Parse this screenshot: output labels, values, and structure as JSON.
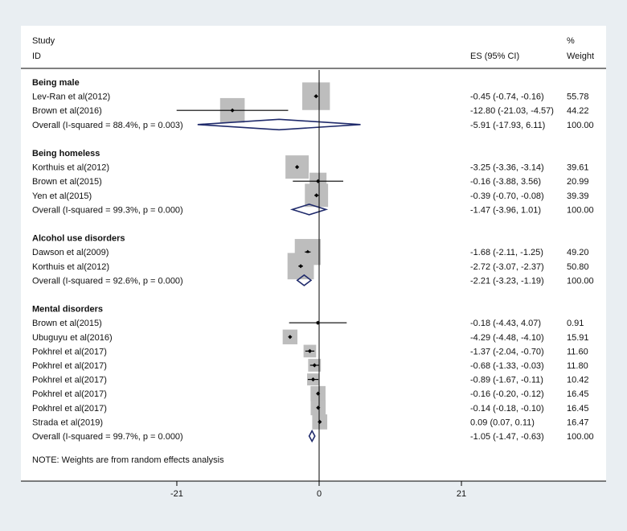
{
  "chart_data": {
    "type": "forest",
    "header": {
      "study": "Study",
      "id": "ID",
      "es": "ES (95% CI)",
      "weight_pct": "%",
      "weight": "Weight"
    },
    "groups": [
      {
        "name": "Being male",
        "studies": [
          {
            "label": "Lev-Ran et al(2012)",
            "es": -0.45,
            "lo": -0.74,
            "hi": -0.16,
            "weight": 55.78,
            "es_text": "-0.45 (-0.74, -0.16)",
            "weight_text": "55.78"
          },
          {
            "label": "Brown et al(2016)",
            "es": -12.8,
            "lo": -21.03,
            "hi": -4.57,
            "weight": 44.22,
            "es_text": "-12.80 (-21.03, -4.57)",
            "weight_text": "44.22"
          }
        ],
        "overall": {
          "label": "Overall  (I-squared = 88.4%, p = 0.003)",
          "es": -5.91,
          "lo": -17.93,
          "hi": 6.11,
          "es_text": "-5.91 (-17.93, 6.11)",
          "weight_text": "100.00"
        }
      },
      {
        "name": "Being homeless",
        "studies": [
          {
            "label": "Korthuis et al(2012)",
            "es": -3.25,
            "lo": -3.36,
            "hi": -3.14,
            "weight": 39.61,
            "es_text": "-3.25 (-3.36, -3.14)",
            "weight_text": "39.61"
          },
          {
            "label": "Brown et al(2015)",
            "es": -0.16,
            "lo": -3.88,
            "hi": 3.56,
            "weight": 20.99,
            "es_text": "-0.16 (-3.88, 3.56)",
            "weight_text": "20.99"
          },
          {
            "label": "Yen et al(2015)",
            "es": -0.39,
            "lo": -0.7,
            "hi": -0.08,
            "weight": 39.39,
            "es_text": "-0.39 (-0.70, -0.08)",
            "weight_text": "39.39"
          }
        ],
        "overall": {
          "label": "Overall  (I-squared = 99.3%, p = 0.000)",
          "es": -1.47,
          "lo": -3.96,
          "hi": 1.01,
          "es_text": "-1.47 (-3.96, 1.01)",
          "weight_text": "100.00"
        }
      },
      {
        "name": "Alcohol use disorders",
        "studies": [
          {
            "label": "Dawson et al(2009)",
            "es": -1.68,
            "lo": -2.11,
            "hi": -1.25,
            "weight": 49.2,
            "es_text": "-1.68 (-2.11, -1.25)",
            "weight_text": "49.20"
          },
          {
            "label": "Korthuis et al(2012)",
            "es": -2.72,
            "lo": -3.07,
            "hi": -2.37,
            "weight": 50.8,
            "es_text": "-2.72 (-3.07, -2.37)",
            "weight_text": "50.80"
          }
        ],
        "overall": {
          "label": "Overall  (I-squared = 92.6%, p = 0.000)",
          "es": -2.21,
          "lo": -3.23,
          "hi": -1.19,
          "es_text": "-2.21 (-3.23, -1.19)",
          "weight_text": "100.00"
        }
      },
      {
        "name": "Mental disorders",
        "studies": [
          {
            "label": "Brown et al(2015)",
            "es": -0.18,
            "lo": -4.43,
            "hi": 4.07,
            "weight": 0.91,
            "es_text": "-0.18 (-4.43, 4.07)",
            "weight_text": "0.91"
          },
          {
            "label": "Ubuguyu et al(2016)",
            "es": -4.29,
            "lo": -4.48,
            "hi": -4.1,
            "weight": 15.91,
            "es_text": "-4.29 (-4.48, -4.10)",
            "weight_text": "15.91"
          },
          {
            "label": "Pokhrel et al(2017)",
            "es": -1.37,
            "lo": -2.04,
            "hi": -0.7,
            "weight": 11.6,
            "es_text": "-1.37 (-2.04, -0.70)",
            "weight_text": "11.60"
          },
          {
            "label": "Pokhrel et al(2017)",
            "es": -0.68,
            "lo": -1.33,
            "hi": -0.03,
            "weight": 11.8,
            "es_text": "-0.68 (-1.33, -0.03)",
            "weight_text": "11.80"
          },
          {
            "label": "Pokhrel et al(2017)",
            "es": -0.89,
            "lo": -1.67,
            "hi": -0.11,
            "weight": 10.42,
            "es_text": "-0.89 (-1.67, -0.11)",
            "weight_text": "10.42"
          },
          {
            "label": "Pokhrel et al(2017)",
            "es": -0.16,
            "lo": -0.2,
            "hi": -0.12,
            "weight": 16.45,
            "es_text": "-0.16 (-0.20, -0.12)",
            "weight_text": "16.45"
          },
          {
            "label": "Pokhrel et al(2017)",
            "es": -0.14,
            "lo": -0.18,
            "hi": -0.1,
            "weight": 16.45,
            "es_text": "-0.14 (-0.18, -0.10)",
            "weight_text": "16.45"
          },
          {
            "label": "Strada et al(2019)",
            "es": 0.09,
            "lo": 0.07,
            "hi": 0.11,
            "weight": 16.47,
            "es_text": "0.09 (0.07, 0.11)",
            "weight_text": "16.47"
          }
        ],
        "overall": {
          "label": "Overall  (I-squared = 99.7%, p = 0.000)",
          "es": -1.05,
          "lo": -1.47,
          "hi": -0.63,
          "es_text": "-1.05 (-1.47, -0.63)",
          "weight_text": "100.00"
        }
      }
    ],
    "note": "NOTE: Weights are from random effects analysis",
    "xaxis": {
      "ticks": [
        -21,
        0,
        21
      ],
      "tick_labels": [
        "-21",
        "0",
        "21"
      ],
      "range": [
        -21,
        21
      ],
      "null_line": 0
    },
    "colors": {
      "square": "#bdbdbd",
      "diamond": "#1f2a6b",
      "line": "#000000",
      "panel": "#ffffff",
      "background": "#e9eef2"
    }
  }
}
